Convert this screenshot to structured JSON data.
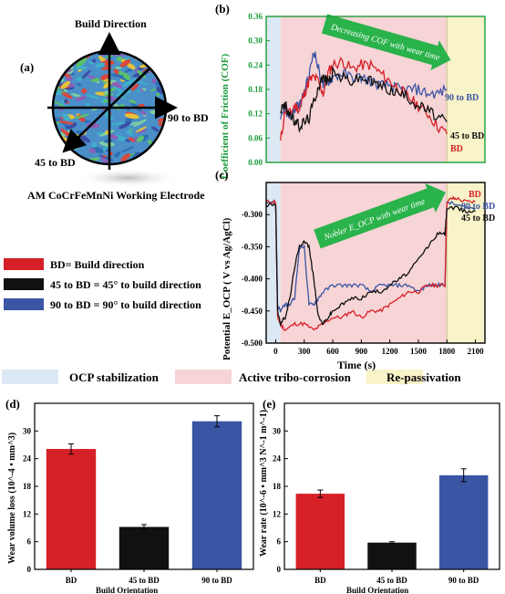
{
  "panel_a": {
    "label": "(a)",
    "build_direction": "Build Direction",
    "label_90": "90 to BD",
    "label_45": "45 to BD",
    "caption": "AM CoCrFeMnNi Working Electrode"
  },
  "legend": {
    "items": [
      {
        "text": "BD= Build direction",
        "color": "#d62027"
      },
      {
        "text": "45 to BD = 45° to build direction",
        "color": "#111111"
      },
      {
        "text": "90 to BD = 90° to build direction",
        "color": "#3a55a4"
      }
    ]
  },
  "phases": [
    {
      "name": "OCP stabilization",
      "color": "#dce8f3"
    },
    {
      "name": "Active tribo-corrosion",
      "color": "#f7d4d6"
    },
    {
      "name": "Re-passivation",
      "color": "#f8f3c8"
    }
  ],
  "colors": {
    "bd": "#d62027",
    "d45": "#111111",
    "d90": "#3a55a4",
    "cof_axis": "#1a9c3a",
    "arrow": "#2ab24b"
  },
  "chart_data": [
    {
      "id": "b",
      "panel_label": "(b)",
      "type": "line",
      "ylabel": "Coefficient of Friction (COF)",
      "xlabel": "",
      "ylim": [
        0,
        0.36
      ],
      "yticks": [
        "0.00",
        "0.06",
        "0.12",
        "0.18",
        "0.24",
        "0.30",
        "0.36"
      ],
      "xlim": [
        -100,
        2200
      ],
      "annotation": "Decreasing COF with wear time",
      "phase_bounds": [
        0,
        50,
        1800
      ],
      "series": [
        {
          "name": "BD",
          "x": [
            50,
            100,
            150,
            200,
            250,
            300,
            350,
            400,
            450,
            500,
            550,
            600,
            700,
            800,
            900,
            1000,
            1100,
            1200,
            1300,
            1400,
            1500,
            1600,
            1700,
            1800
          ],
          "y": [
            0.05,
            0.13,
            0.12,
            0.14,
            0.13,
            0.17,
            0.2,
            0.21,
            0.2,
            0.17,
            0.22,
            0.24,
            0.25,
            0.23,
            0.24,
            0.24,
            0.22,
            0.2,
            0.18,
            0.16,
            0.14,
            0.12,
            0.09,
            0.07
          ]
        },
        {
          "name": "45 to BD",
          "x": [
            50,
            100,
            150,
            200,
            250,
            300,
            350,
            400,
            450,
            500,
            550,
            600,
            700,
            800,
            900,
            1000,
            1100,
            1200,
            1300,
            1400,
            1500,
            1600,
            1700,
            1800
          ],
          "y": [
            0.13,
            0.14,
            0.12,
            0.1,
            0.09,
            0.1,
            0.11,
            0.15,
            0.19,
            0.21,
            0.2,
            0.22,
            0.21,
            0.2,
            0.21,
            0.2,
            0.19,
            0.18,
            0.17,
            0.16,
            0.14,
            0.13,
            0.11,
            0.1
          ]
        },
        {
          "name": "90 to BD",
          "x": [
            50,
            100,
            150,
            200,
            250,
            300,
            350,
            400,
            450,
            500,
            550,
            600,
            700,
            800,
            900,
            1000,
            1100,
            1200,
            1300,
            1400,
            1500,
            1600,
            1700,
            1800
          ],
          "y": [
            0.12,
            0.13,
            0.11,
            0.13,
            0.14,
            0.17,
            0.21,
            0.28,
            0.23,
            0.19,
            0.2,
            0.21,
            0.22,
            0.21,
            0.21,
            0.2,
            0.19,
            0.19,
            0.18,
            0.18,
            0.18,
            0.17,
            0.17,
            0.18
          ]
        }
      ],
      "end_labels": [
        "90 to BD",
        "45 to BD",
        "BD"
      ]
    },
    {
      "id": "c",
      "panel_label": "(c)",
      "type": "line",
      "ylabel": "Potential E_OCP ( V vs Ag/AgCl)",
      "xlabel": "Time (s)",
      "ylim": [
        -0.5,
        -0.25
      ],
      "yticks": [
        "-0.500",
        "-0.450",
        "-0.400",
        "-0.350",
        "-0.300"
      ],
      "xticks": [
        "0",
        "300",
        "600",
        "900",
        "1200",
        "1500",
        "1800",
        "2100"
      ],
      "xlim": [
        -100,
        2200
      ],
      "annotation": "Nobler E_OCP with wear time",
      "phase_bounds": [
        0,
        50,
        1800
      ],
      "series": [
        {
          "name": "BD",
          "x": [
            -100,
            0,
            20,
            50,
            100,
            200,
            300,
            400,
            500,
            600,
            700,
            800,
            900,
            1000,
            1100,
            1200,
            1300,
            1400,
            1500,
            1600,
            1700,
            1780,
            1800,
            1850,
            1900,
            2000,
            2100
          ],
          "y": [
            -0.28,
            -0.28,
            -0.46,
            -0.47,
            -0.48,
            -0.47,
            -0.47,
            -0.48,
            -0.47,
            -0.46,
            -0.46,
            -0.45,
            -0.46,
            -0.45,
            -0.45,
            -0.44,
            -0.43,
            -0.42,
            -0.42,
            -0.41,
            -0.41,
            -0.41,
            -0.28,
            -0.275,
            -0.275,
            -0.28,
            -0.28
          ]
        },
        {
          "name": "45 to BD",
          "x": [
            -100,
            0,
            20,
            50,
            100,
            150,
            200,
            250,
            300,
            350,
            400,
            450,
            500,
            550,
            600,
            700,
            800,
            900,
            1000,
            1100,
            1200,
            1300,
            1400,
            1500,
            1600,
            1700,
            1780,
            1800,
            1900,
            2000,
            2100
          ],
          "y": [
            -0.285,
            -0.285,
            -0.45,
            -0.47,
            -0.46,
            -0.43,
            -0.38,
            -0.35,
            -0.34,
            -0.35,
            -0.4,
            -0.46,
            -0.47,
            -0.46,
            -0.45,
            -0.44,
            -0.43,
            -0.43,
            -0.42,
            -0.42,
            -0.41,
            -0.4,
            -0.39,
            -0.37,
            -0.35,
            -0.33,
            -0.33,
            -0.29,
            -0.29,
            -0.295,
            -0.295
          ]
        },
        {
          "name": "90 to BD",
          "x": [
            -100,
            0,
            20,
            50,
            100,
            150,
            200,
            250,
            300,
            350,
            400,
            450,
            500,
            600,
            700,
            800,
            900,
            1000,
            1100,
            1200,
            1300,
            1400,
            1500,
            1600,
            1700,
            1780,
            1800,
            1900,
            2000,
            2100
          ],
          "y": [
            -0.28,
            -0.28,
            -0.44,
            -0.45,
            -0.44,
            -0.44,
            -0.43,
            -0.35,
            -0.35,
            -0.44,
            -0.44,
            -0.43,
            -0.42,
            -0.41,
            -0.41,
            -0.41,
            -0.41,
            -0.42,
            -0.41,
            -0.41,
            -0.41,
            -0.41,
            -0.42,
            -0.41,
            -0.41,
            -0.41,
            -0.28,
            -0.285,
            -0.29,
            -0.29
          ]
        }
      ],
      "end_labels": [
        "BD",
        "90 to BD",
        "45 to BD"
      ]
    },
    {
      "id": "d",
      "panel_label": "(d)",
      "type": "bar",
      "categories": [
        "BD",
        "45 to BD",
        "90 to BD"
      ],
      "values": [
        26.1,
        9.2,
        32.1
      ],
      "errors": [
        1.1,
        0.5,
        1.2
      ],
      "ylim": [
        0,
        36
      ],
      "yticks": [
        "0",
        "6",
        "12",
        "18",
        "24",
        "30"
      ],
      "ylabel": "Wear volume loss (10^-4 • mm^3)",
      "xlabel": "Build Orientation"
    },
    {
      "id": "e",
      "panel_label": "(e)",
      "type": "bar",
      "categories": [
        "BD",
        "45 to BD",
        "90 to BD"
      ],
      "values": [
        16.4,
        5.8,
        20.4
      ],
      "errors": [
        0.8,
        0.2,
        1.4
      ],
      "ylim": [
        0,
        36
      ],
      "yticks": [
        "0",
        "6",
        "12",
        "18",
        "24",
        "30"
      ],
      "ylabel": "Wear rate (10^-6 • mm^3 N^-1 m^-1)",
      "xlabel": "Build Orientation"
    }
  ]
}
